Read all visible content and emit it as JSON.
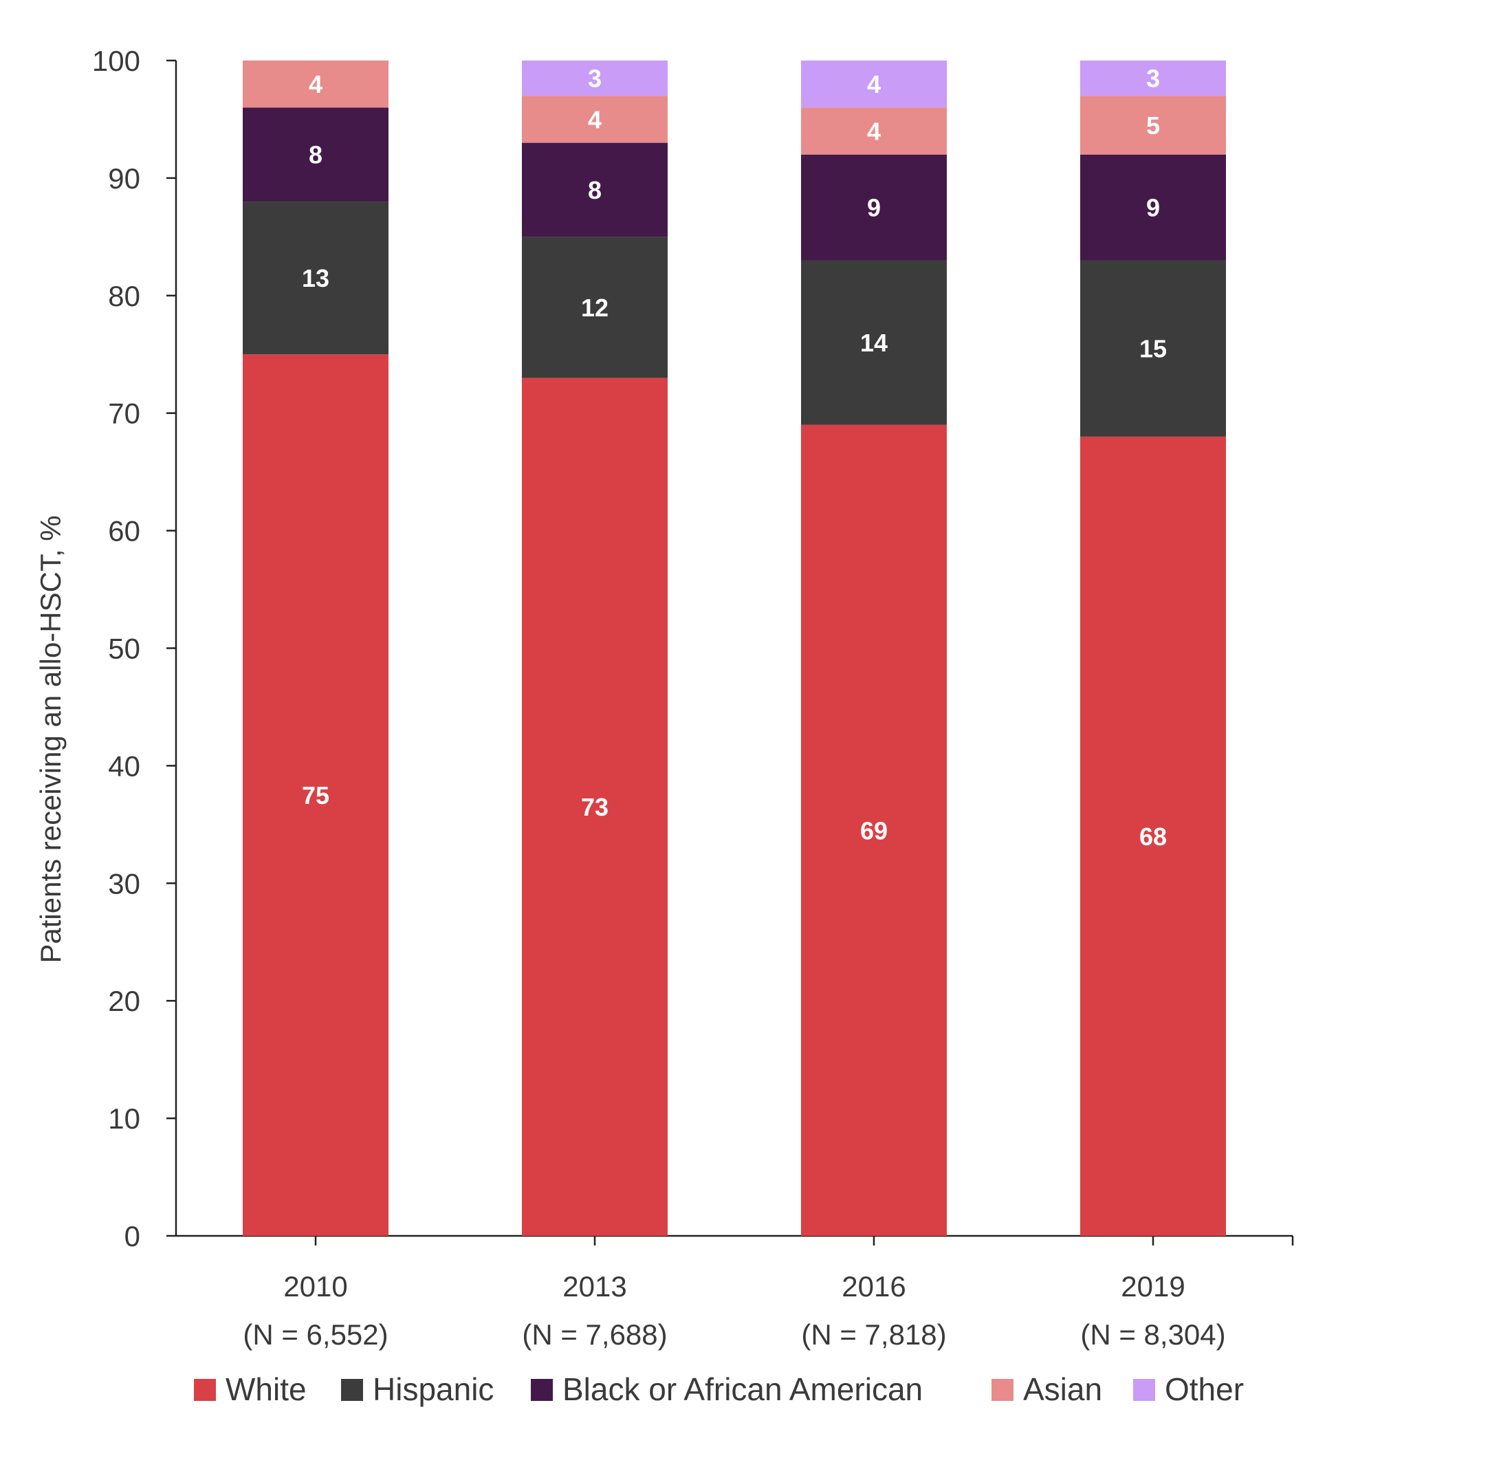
{
  "chart_data": {
    "type": "bar",
    "stacked": true,
    "title": "",
    "ylabel": "Patients receiving an allo-HSCT, %",
    "ylim": [
      0,
      100
    ],
    "yticks": [
      0,
      10,
      20,
      30,
      40,
      50,
      60,
      70,
      80,
      90,
      100
    ],
    "categories": [
      {
        "year": "2010",
        "n": "(N = 6,552)"
      },
      {
        "year": "2013",
        "n": "(N = 7,688)"
      },
      {
        "year": "2016",
        "n": "(N = 7,818)"
      },
      {
        "year": "2019",
        "n": "(N = 8,304)"
      }
    ],
    "series": [
      {
        "name": "White",
        "color": "#d94045",
        "values": [
          75,
          73,
          69,
          68
        ]
      },
      {
        "name": "Hispanic",
        "color": "#3c3c3c",
        "values": [
          13,
          12,
          14,
          15
        ]
      },
      {
        "name": "Black or African American",
        "color": "#43194a",
        "values": [
          8,
          8,
          9,
          9
        ]
      },
      {
        "name": "Asian",
        "color": "#e88b8b",
        "values": [
          4,
          4,
          4,
          5
        ]
      },
      {
        "name": "Other",
        "color": "#c89cf7",
        "values": [
          0,
          3,
          4,
          3
        ]
      }
    ],
    "legend_position": "bottom",
    "grid": false
  }
}
